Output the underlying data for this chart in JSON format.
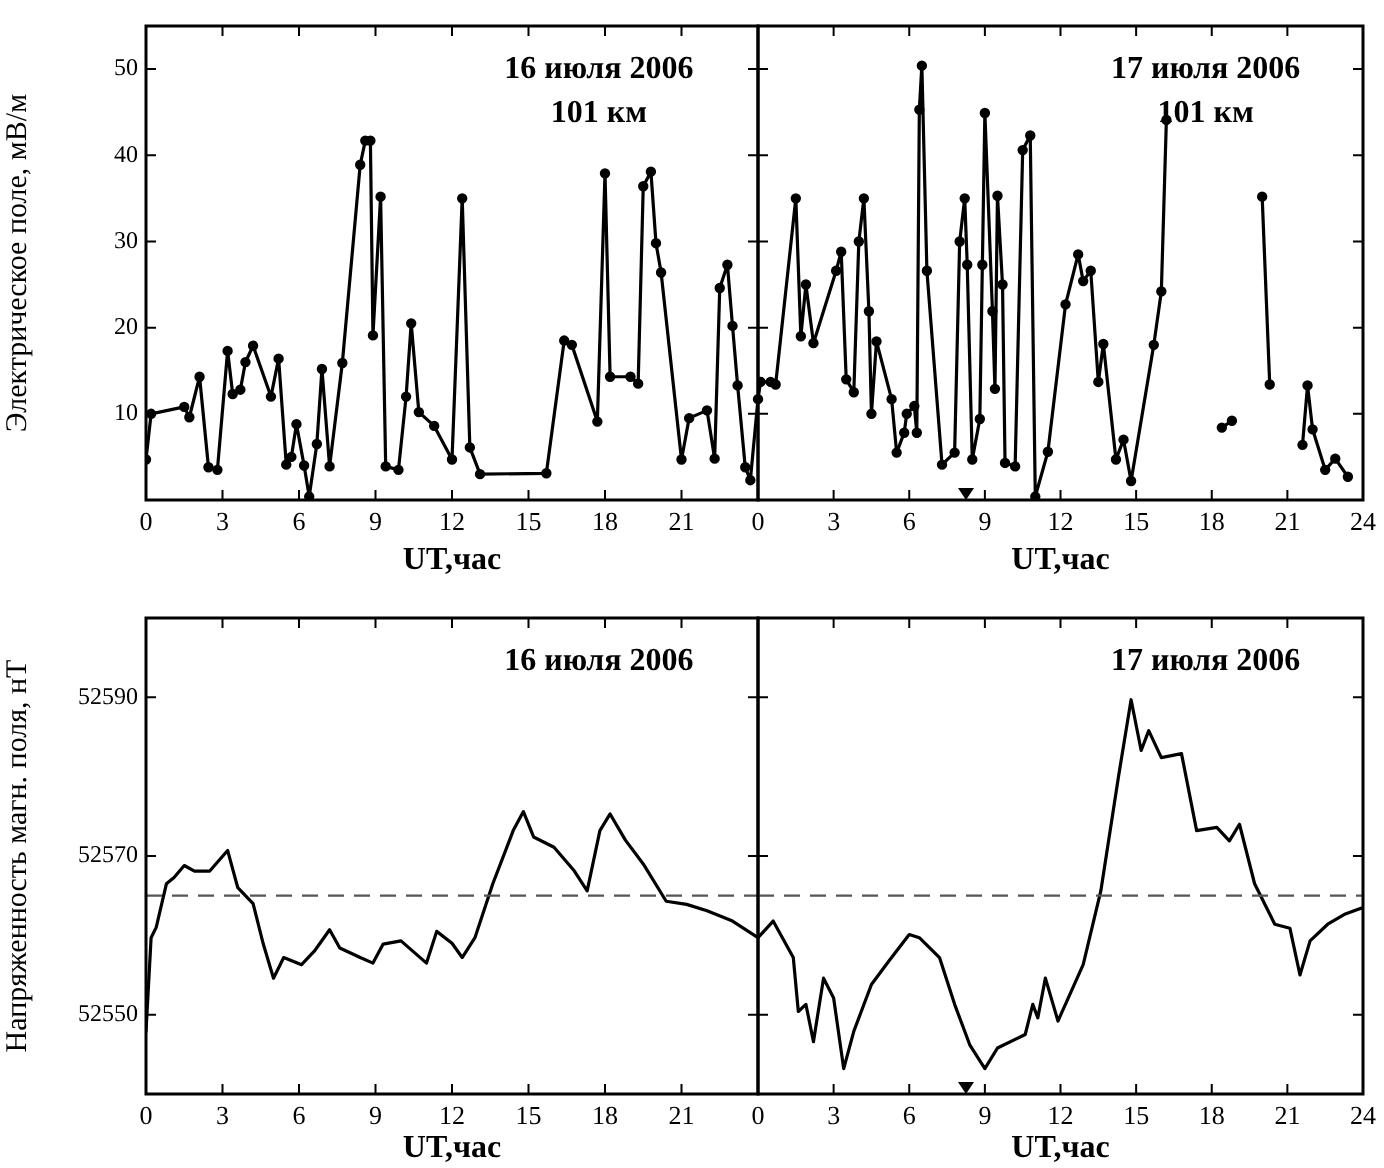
{
  "chart_data": [
    {
      "type": "line",
      "annotations": [
        "16 июля 2006",
        "101 км"
      ],
      "xlabel": "UT,час",
      "ylabel": "Электрическое поле, мВ/м",
      "marker": "circle",
      "x": [
        0,
        0.2,
        1.5,
        1.7,
        2.1,
        2.45,
        2.8,
        3.2,
        3.4,
        3.7,
        3.9,
        4.2,
        4.9,
        5.2,
        5.5,
        5.7,
        5.9,
        6.2,
        6.4,
        6.7,
        6.9,
        7.2,
        7.7,
        8.4,
        8.6,
        8.8,
        8.9,
        9.2,
        9.4,
        9.9,
        10.2,
        10.4,
        10.7,
        11.3,
        12.0,
        12.4,
        12.7,
        13.1,
        15.7,
        16.4,
        16.7,
        17.7,
        18.0,
        18.2,
        19.0,
        19.3,
        19.5,
        19.8,
        20.0,
        20.2,
        21.0,
        21.3,
        22.0,
        22.3,
        22.5,
        22.8,
        23.0,
        23.2,
        23.5,
        23.7,
        24
      ],
      "series": [
        {
          "color": "#000000",
          "values": [
            4.7,
            10,
            10.8,
            9.6,
            14.3,
            3.8,
            3.5,
            17.3,
            12.3,
            12.8,
            16,
            17.9,
            12,
            16.4,
            4.1,
            5,
            8.8,
            4,
            0.4,
            6.5,
            15.2,
            3.9,
            15.9,
            38.9,
            41.7,
            41.7,
            19.1,
            35.2,
            3.9,
            3.5,
            12,
            20.5,
            10.2,
            8.6,
            4.7,
            35,
            6.1,
            3,
            3.1,
            18.5,
            18,
            9.1,
            37.9,
            14.3,
            14.3,
            13.5,
            36.4,
            38.1,
            29.8,
            26.4,
            4.7,
            9.5,
            10.4,
            4.8,
            24.6,
            27.3,
            20.2,
            13.3,
            3.8,
            2.3,
            11.7
          ]
        }
      ],
      "xlim": [
        0,
        24
      ],
      "xticks": [
        0,
        3,
        6,
        9,
        12,
        15,
        18,
        21,
        {
          "value": 24,
          "label": null
        }
      ],
      "ylim": [
        0,
        55
      ],
      "yticks": [
        10,
        20,
        30,
        40,
        50
      ]
    },
    {
      "type": "line",
      "annotations": [
        "17 июля 2006",
        "101 км"
      ],
      "xlabel": "UT,час",
      "marker": "circle",
      "tick_labels": "x",
      "x": [
        0,
        0.1,
        0.5,
        0.7,
        1.5,
        1.7,
        1.9,
        2.2,
        3.1,
        3.3,
        3.5,
        3.8,
        4.0,
        4.2,
        4.4,
        4.5,
        4.7,
        5.3,
        5.5,
        5.8,
        5.9,
        6.2,
        6.3,
        6.4,
        6.5,
        6.7,
        7.3,
        7.8,
        8.0,
        8.2,
        8.3,
        8.5,
        8.8,
        8.9,
        9.0,
        9.3,
        9.4,
        9.5,
        9.7,
        9.8,
        10.2,
        10.5,
        10.8,
        11.0,
        11.5,
        12.2,
        12.7,
        12.9,
        13.2,
        13.5,
        13.7,
        14.2,
        14.5,
        14.8,
        15.7,
        16.0,
        16.2,
        17.3,
        18.4,
        18.8,
        19.4,
        20.0,
        20.3,
        21.0,
        21.6,
        21.8,
        22.0,
        22.5,
        22.9,
        23.4
      ],
      "series": [
        {
          "color": "#000000",
          "values": [
            11.7,
            13.7,
            13.7,
            13.4,
            35,
            19,
            25,
            18.2,
            26.6,
            28.8,
            14,
            12.5,
            30,
            35,
            21.9,
            10,
            18.4,
            11.7,
            5.5,
            7.8,
            10,
            10.9,
            7.8,
            45.3,
            50.4,
            26.6,
            4.1,
            5.5,
            30,
            35,
            27.3,
            4.7,
            9.4,
            27.3,
            44.9,
            21.9,
            12.9,
            35.3,
            25,
            4.3,
            3.9,
            40.6,
            42.3,
            0.4,
            5.6,
            22.7,
            28.5,
            25.4,
            26.6,
            13.7,
            18.1,
            4.7,
            7,
            2.2,
            18,
            24.2,
            44.1,
            null,
            8.4,
            9.2,
            null,
            35.2,
            13.4,
            null,
            6.4,
            13.3,
            8.2,
            3.5,
            4.8,
            2.7
          ]
        }
      ],
      "xlim": [
        0,
        24
      ],
      "xticks": [
        0,
        3,
        6,
        9,
        12,
        15,
        18,
        21,
        24
      ],
      "ylim": [
        0,
        55
      ],
      "yticks": [
        10,
        20,
        30,
        40,
        50
      ]
    },
    {
      "type": "line",
      "annotations": [
        "16 июля 2006"
      ],
      "xlabel": "UT,час",
      "ylabel": "Напряженность магн. поля, нТ",
      "x": [
        0,
        0.2,
        0.4,
        0.8,
        1.1,
        1.5,
        1.9,
        2.5,
        3.2,
        3.6,
        4.2,
        4.6,
        5.0,
        5.4,
        6.1,
        6.6,
        7.2,
        7.6,
        8.4,
        8.9,
        9.3,
        10.0,
        11.0,
        11.4,
        12.0,
        12.4,
        12.9,
        13.6,
        14.4,
        14.8,
        15.2,
        16.0,
        16.8,
        17.3,
        17.8,
        18.2,
        18.8,
        19.5,
        20.4,
        21.2,
        22.0,
        23.0,
        24
      ],
      "series": [
        {
          "color": "#000000",
          "values": [
            52547.9,
            52559.7,
            52561,
            52566.5,
            52567.3,
            52568.8,
            52568.1,
            52568.1,
            52570.7,
            52566,
            52564,
            52558.9,
            52554.6,
            52557.2,
            52556.3,
            52558,
            52560.7,
            52558.4,
            52557.2,
            52556.5,
            52558.9,
            52559.3,
            52556.5,
            52560.5,
            52559,
            52557.2,
            52559.7,
            52566.5,
            52573.2,
            52575.6,
            52572.4,
            52571.1,
            52568.1,
            52565.6,
            52573.2,
            52575.3,
            52572,
            52569,
            52564.3,
            52563.9,
            52563.1,
            52561.8,
            52559.7
          ]
        }
      ],
      "ref_lines": [
        {
          "axis": "y",
          "value": 52565,
          "line_style": "dashed",
          "color": "#555555"
        }
      ],
      "xlim": [
        0,
        24
      ],
      "xticks": [
        0,
        3,
        6,
        9,
        12,
        15,
        18,
        21,
        {
          "value": 24,
          "label": null
        }
      ],
      "ylim": [
        52540,
        52600
      ],
      "yticks": [
        52550,
        52570,
        52590
      ]
    },
    {
      "type": "line",
      "annotations": [
        "17 июля 2006"
      ],
      "xlabel": "UT,час",
      "tick_labels": "x",
      "x": [
        0,
        0.6,
        1.4,
        1.6,
        1.9,
        2.2,
        2.6,
        3.0,
        3.4,
        3.8,
        4.5,
        5.2,
        6.0,
        6.4,
        7.2,
        7.8,
        8.4,
        9.0,
        9.5,
        10.6,
        10.9,
        11.1,
        11.4,
        11.9,
        12.9,
        13.6,
        14.3,
        14.8,
        15.2,
        15.5,
        16.0,
        16.8,
        17.4,
        18.2,
        18.7,
        19.1,
        19.7,
        20.5,
        21.1,
        21.5,
        21.9,
        22.6,
        23.3,
        24
      ],
      "series": [
        {
          "color": "#000000",
          "values": [
            52559.7,
            52561.8,
            52557.2,
            52550.4,
            52551.3,
            52546.6,
            52554.6,
            52552.1,
            52543.2,
            52547.9,
            52553.8,
            52556.8,
            52560.1,
            52559.7,
            52557.2,
            52551.3,
            52546.2,
            52543.2,
            52545.8,
            52547.5,
            52551.3,
            52549.6,
            52554.6,
            52549.2,
            52556.3,
            52565.6,
            52580,
            52589.7,
            52583.3,
            52585.8,
            52582.4,
            52582.9,
            52573.2,
            52573.6,
            52571.9,
            52574,
            52566.5,
            52561.4,
            52560.9,
            52555,
            52559.3,
            52561.4,
            52562.7,
            52563.5
          ]
        }
      ],
      "ref_lines": [
        {
          "axis": "y",
          "value": 52565,
          "line_style": "dashed",
          "color": "#555555"
        }
      ],
      "xlim": [
        0,
        24
      ],
      "xticks": [
        0,
        3,
        6,
        9,
        12,
        15,
        18,
        21,
        24
      ],
      "ylim": [
        52540,
        52600
      ],
      "yticks": [
        52550,
        52570,
        52590
      ]
    }
  ]
}
